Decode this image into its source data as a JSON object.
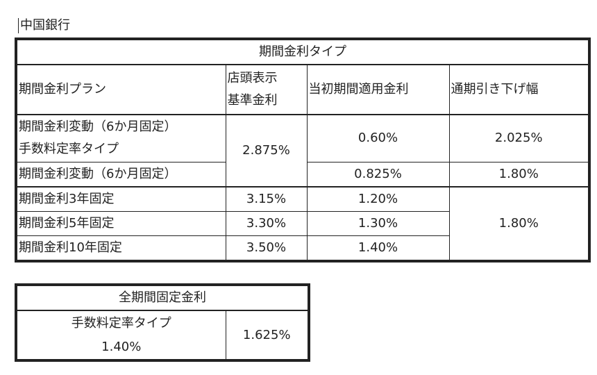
{
  "bank_name": "中国銀行",
  "table1": {
    "title": "期間金利タイプ",
    "headers": {
      "plan": "期間金利プラン",
      "base_rate_line1": "店頭表示",
      "base_rate_line2": "基準金利",
      "initial_rate": "当初期間適用金利",
      "discount": "通期引き下げ幅"
    },
    "rows": [
      {
        "plan_line1": "期間金利変動（6か月固定）",
        "plan_line2": "手数料定率タイプ",
        "base_rate": "2.875%",
        "initial_rate": "0.60%",
        "discount": "2.025%"
      },
      {
        "plan": "期間金利変動（6か月固定）",
        "initial_rate": "0.825%",
        "discount": "1.80%"
      },
      {
        "plan": "期間金利3年固定",
        "base_rate": "3.15%",
        "initial_rate": "1.20%",
        "discount": "1.80%"
      },
      {
        "plan": "期間金利5年固定",
        "base_rate": "3.30%",
        "initial_rate": "1.30%"
      },
      {
        "plan": "期間金利10年固定",
        "base_rate": "3.50%",
        "initial_rate": "1.40%"
      }
    ]
  },
  "table2": {
    "title": "全期間固定金利",
    "plan_line1": "手数料定率タイプ",
    "plan_line2": "1.40%",
    "rate": "1.625%"
  }
}
